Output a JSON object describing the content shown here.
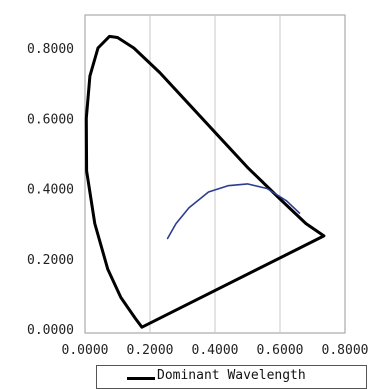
{
  "chart_data": {
    "type": "scatter",
    "xlim": [
      0,
      0.8
    ],
    "ylim": [
      0,
      0.85
    ],
    "grid": "vertical",
    "x_ticks": [
      {
        "value": 0.0,
        "label": "0.0000"
      },
      {
        "value": 0.2,
        "label": "0.2000"
      },
      {
        "value": 0.4,
        "label": "0.4000"
      },
      {
        "value": 0.6,
        "label": "0.6000"
      },
      {
        "value": 0.8,
        "label": "0.8000"
      }
    ],
    "y_ticks": [
      {
        "value": 0.0,
        "label": "0.0000"
      },
      {
        "value": 0.2,
        "label": "0.2000"
      },
      {
        "value": 0.4,
        "label": "0.4000"
      },
      {
        "value": 0.6,
        "label": "0.6000"
      },
      {
        "value": 0.8,
        "label": "0.8000"
      }
    ],
    "legend_position": "bottom",
    "series": [
      {
        "name": "Dominant Wavelength",
        "color": "#000000",
        "points": [
          [
            0.175,
            0.005
          ],
          [
            0.155,
            0.03
          ],
          [
            0.11,
            0.09
          ],
          [
            0.07,
            0.17
          ],
          [
            0.03,
            0.3
          ],
          [
            0.005,
            0.45
          ],
          [
            0.004,
            0.6
          ],
          [
            0.015,
            0.72
          ],
          [
            0.04,
            0.8
          ],
          [
            0.075,
            0.833
          ],
          [
            0.1,
            0.83
          ],
          [
            0.15,
            0.8
          ],
          [
            0.23,
            0.73
          ],
          [
            0.32,
            0.64
          ],
          [
            0.4,
            0.56
          ],
          [
            0.5,
            0.46
          ],
          [
            0.6,
            0.37
          ],
          [
            0.68,
            0.3
          ],
          [
            0.735,
            0.265
          ],
          [
            0.175,
            0.005
          ]
        ]
      },
      {
        "name": "",
        "color": "#2c3d8f",
        "points": [
          [
            0.254,
            0.258
          ],
          [
            0.28,
            0.3
          ],
          [
            0.32,
            0.345
          ],
          [
            0.38,
            0.39
          ],
          [
            0.44,
            0.408
          ],
          [
            0.5,
            0.413
          ],
          [
            0.56,
            0.4
          ],
          [
            0.62,
            0.365
          ],
          [
            0.66,
            0.33
          ]
        ]
      }
    ]
  }
}
